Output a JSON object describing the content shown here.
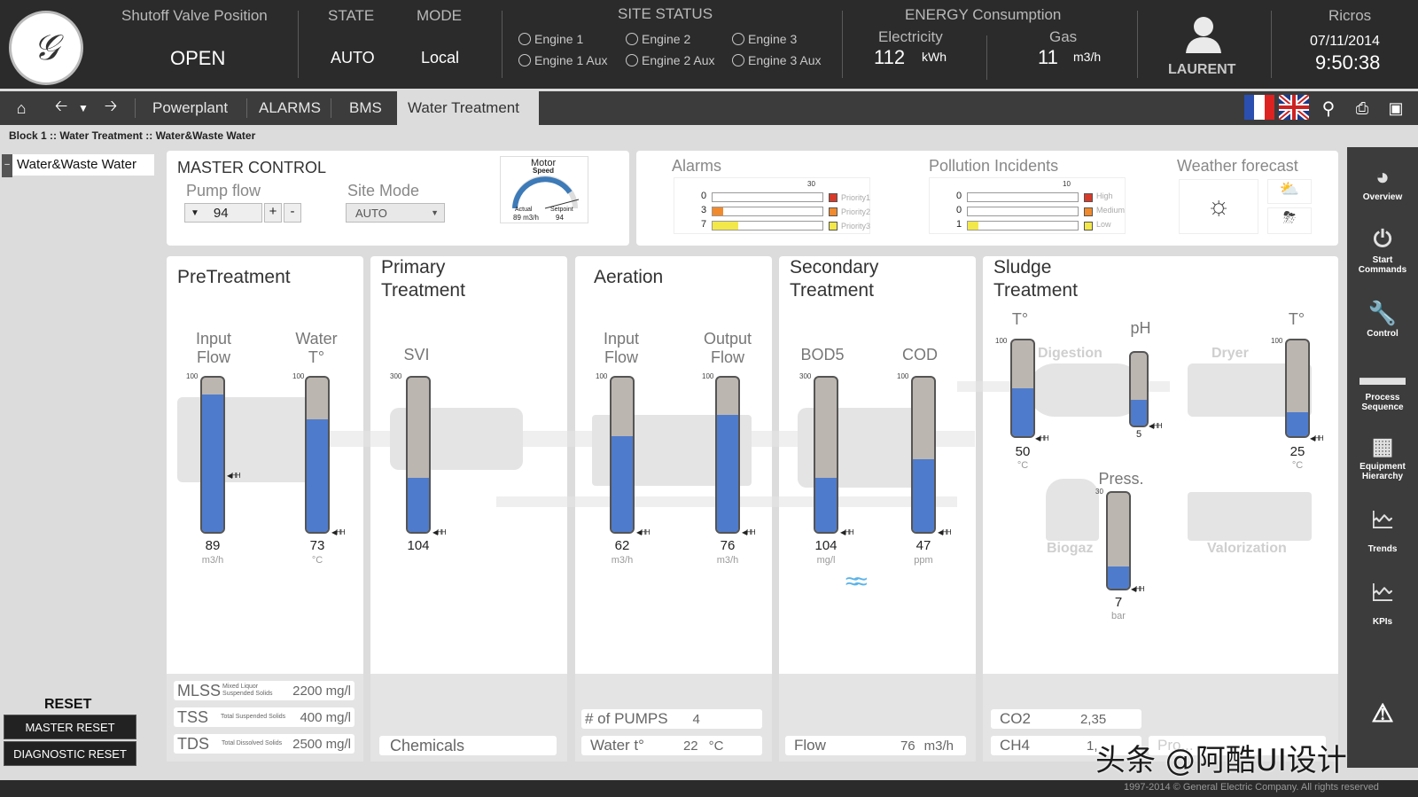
{
  "header": {
    "shutoff_caption": "Shutoff Valve Position",
    "shutoff_value": "OPEN",
    "state_caption": "STATE",
    "state_value": "AUTO",
    "mode_caption": "MODE",
    "mode_value": "Local",
    "site_status_caption": "SITE STATUS",
    "engines": [
      "Engine 1",
      "Engine 2",
      "Engine 3",
      "Engine 1 Aux",
      "Engine 2 Aux",
      "Engine 3 Aux"
    ],
    "energy_caption": "ENERGY Consumption",
    "electricity_caption": "Electricity",
    "electricity_value": "112",
    "electricity_unit": "kWh",
    "gas_caption": "Gas",
    "gas_value": "11",
    "gas_unit": "m3/h",
    "user": "LAURENT",
    "location": "Ricros",
    "date": "07/11/2014",
    "time": "9:50:38"
  },
  "nav": {
    "tabs": [
      "Powerplant",
      "ALARMS",
      "BMS",
      "Water Treatment"
    ],
    "active_tab": "Water Treatment"
  },
  "breadcrumb": "Block 1 :: Water Treatment :: Water&Waste Water",
  "tree": {
    "item": "Water&Waste Water"
  },
  "master": {
    "title": "MASTER CONTROL",
    "pump_flow_label": "Pump flow",
    "pump_flow_value": "94",
    "plus": "+",
    "minus": "-",
    "site_mode_label": "Site Mode",
    "site_mode_value": "AUTO",
    "motor_label": "Motor",
    "speed_label": "Speed",
    "actual_label": "Actual",
    "setpoint_label": "Setpoint",
    "actual_value": "89 m3/h",
    "setpoint_value": "94"
  },
  "alarms": {
    "title": "Alarms",
    "max": "30",
    "rows": [
      {
        "count": "0",
        "label": "Priority1",
        "color": "#d83a2a",
        "fraction": 0
      },
      {
        "count": "3",
        "label": "Priority2",
        "color": "#f08a2c",
        "fraction": 0.1
      },
      {
        "count": "7",
        "label": "Priority3",
        "color": "#f3e84a",
        "fraction": 0.23
      }
    ]
  },
  "pollution": {
    "title": "Pollution Incidents",
    "max": "10",
    "rows": [
      {
        "count": "0",
        "label": "High",
        "color": "#d83a2a",
        "fraction": 0
      },
      {
        "count": "0",
        "label": "Medium",
        "color": "#f08a2c",
        "fraction": 0
      },
      {
        "count": "1",
        "label": "Low",
        "color": "#f3e84a",
        "fraction": 0.1
      }
    ]
  },
  "weather": {
    "title": "Weather forecast"
  },
  "pretreatment": {
    "title": "PreTreatment",
    "input_flow_label": "Input\nFlow",
    "input_flow_value": "89",
    "input_flow_unit": "m3/h",
    "input_flow_fill": 0.89,
    "input_flow_max": "100",
    "water_t_label": "Water\nT°",
    "water_t_value": "73",
    "water_t_unit": "°C",
    "water_t_fill": 0.73,
    "water_t_max": "100",
    "mlss_label": "MLSS",
    "mlss_sub": "Mixed Liquor Suspended Solids",
    "mlss_value": "2200 mg/l",
    "tss_label": "TSS",
    "tss_sub": "Total Suspended Solids",
    "tss_value": "400 mg/l",
    "tds_label": "TDS",
    "tds_sub": "Total Dissolved Solids",
    "tds_value": "2500 mg/l"
  },
  "primary": {
    "title": "Primary\nTreatment",
    "svi_label": "SVI",
    "svi_value": "104",
    "svi_fill": 0.35,
    "svi_max": "300",
    "chemicals": "Chemicals"
  },
  "aeration": {
    "title": "Aeration",
    "input_flow_label": "Input\nFlow",
    "input_flow_value": "62",
    "input_flow_unit": "m3/h",
    "input_flow_fill": 0.62,
    "output_flow_label": "Output\nFlow",
    "output_flow_value": "76",
    "output_flow_unit": "m3/h",
    "output_flow_fill": 0.76,
    "max": "100",
    "pumps_label": "# of PUMPS",
    "pumps_value": "4",
    "water_t_label": "Water t°",
    "water_t_value": "22",
    "water_t_unit": "°C"
  },
  "secondary": {
    "title": "Secondary\nTreatment",
    "bod5_label": "BOD5",
    "bod5_value": "104",
    "bod5_unit": "mg/l",
    "bod5_fill": 0.35,
    "bod5_max": "300",
    "cod_label": "COD",
    "cod_value": "47",
    "cod_unit": "ppm",
    "cod_fill": 0.47,
    "cod_max": "100",
    "flow_label": "Flow",
    "flow_value": "76",
    "flow_unit": "m3/h"
  },
  "sludge": {
    "title": "Sludge\nTreatment",
    "t1_label": "T°",
    "t1_value": "50",
    "t1_unit": "°C",
    "t1_fill": 0.5,
    "ph_label": "pH",
    "ph_value": "5",
    "ph_fill": 0.35,
    "t2_label": "T°",
    "t2_value": "25",
    "t2_unit": "°C",
    "t2_fill": 0.25,
    "press_label": "Press.",
    "press_value": "7",
    "press_unit": "bar",
    "press_fill": 0.23,
    "press_max": "30",
    "max": "100",
    "digestion": "Digestion",
    "dryer": "Dryer",
    "biogaz": "Biogaz",
    "valorization": "Valorization",
    "co2_label": "CO2",
    "co2_value": "2,35",
    "ch4_label": "CH4",
    "ch4_value": "1,",
    "extra_label": "Pro..."
  },
  "reset": {
    "title": "RESET",
    "master": "MASTER RESET",
    "diagnostic": "DIAGNOSTIC RESET"
  },
  "sidebar": [
    "Overview",
    "Start\nCommands",
    "Control",
    "Process\nSequence",
    "Equipment\nHierarchy",
    "Trends",
    "KPIs"
  ],
  "footer": "1997-2014 © General Electric Company. All rights reserved",
  "watermark": "头条 @阿酷UI设计"
}
